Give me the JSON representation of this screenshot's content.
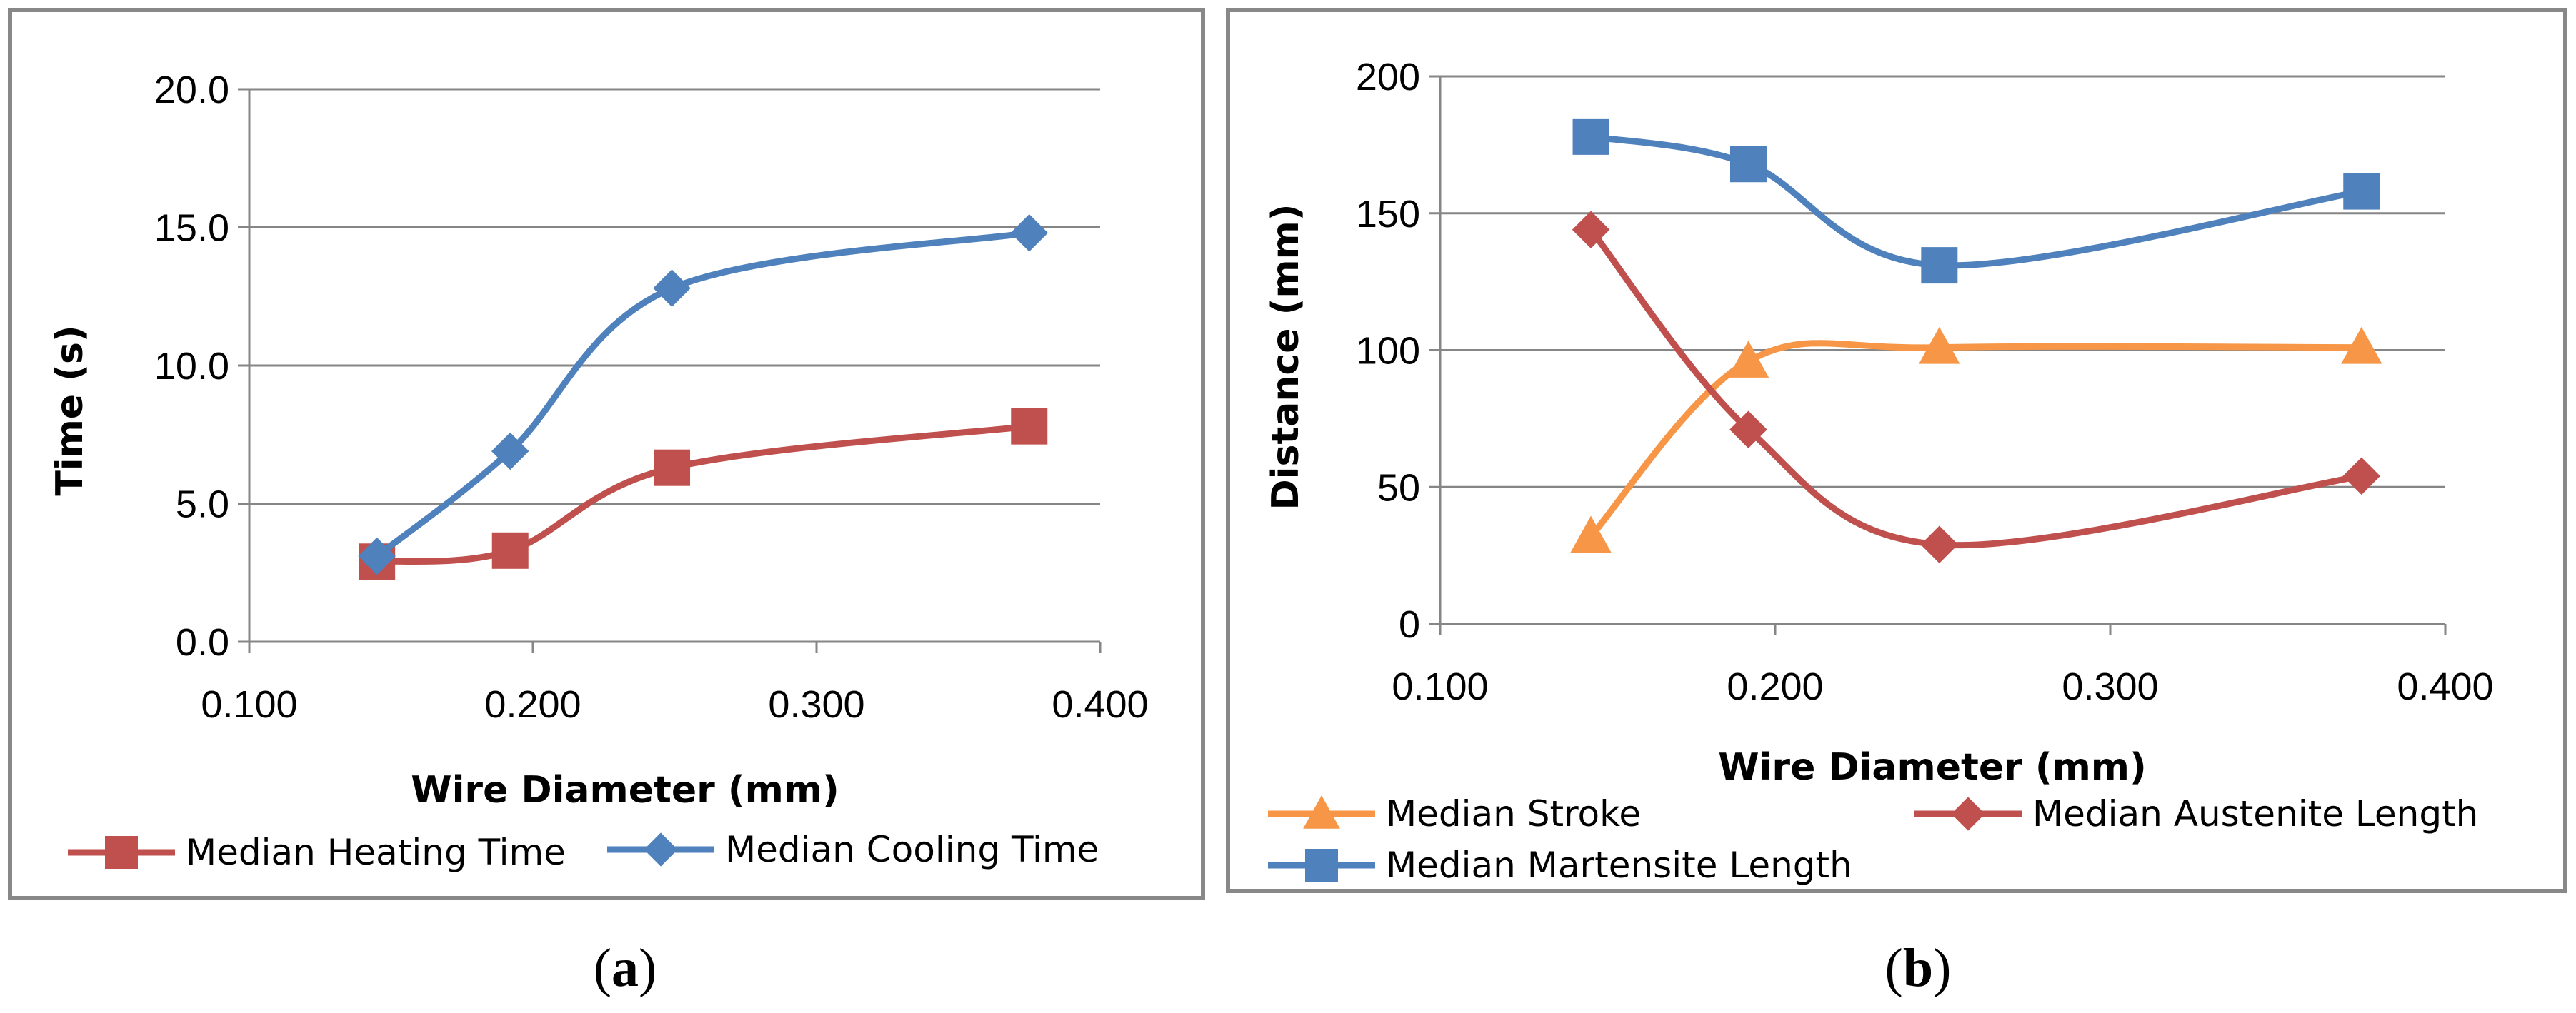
{
  "chart_data": [
    {
      "type": "line",
      "panel_label": "a",
      "xlabel": "Wire Diameter (mm)",
      "ylabel": "Time (s)",
      "xlim": [
        0.1,
        0.4
      ],
      "ylim": [
        0,
        20
      ],
      "x_ticks": [
        "0.100",
        "0.200",
        "0.300",
        "0.400"
      ],
      "y_ticks": [
        "0.0",
        "5.0",
        "10.0",
        "15.0",
        "20.0"
      ],
      "grid": "horizontal",
      "legend_position": "bottom",
      "series": [
        {
          "name": "Median Heating Time",
          "color": "#C0504D",
          "marker": "square",
          "x": [
            0.145,
            0.192,
            0.249,
            0.375
          ],
          "y": [
            2.9,
            3.3,
            6.3,
            7.8
          ]
        },
        {
          "name": "Median Cooling Time",
          "color": "#4F81BD",
          "marker": "diamond",
          "x": [
            0.145,
            0.192,
            0.249,
            0.375
          ],
          "y": [
            3.1,
            6.9,
            12.8,
            14.8
          ]
        }
      ]
    },
    {
      "type": "line",
      "panel_label": "b",
      "xlabel": "Wire Diameter (mm)",
      "ylabel": "Distance (mm)",
      "xlim": [
        0.1,
        0.4
      ],
      "ylim": [
        0,
        200
      ],
      "x_ticks": [
        "0.100",
        "0.200",
        "0.300",
        "0.400"
      ],
      "y_ticks": [
        "0",
        "50",
        "100",
        "150",
        "200"
      ],
      "grid": "horizontal",
      "legend_position": "bottom",
      "series": [
        {
          "name": "Median Stroke",
          "color": "#F79646",
          "marker": "triangle",
          "x": [
            0.145,
            0.192,
            0.249,
            0.375
          ],
          "y": [
            32,
            96,
            101,
            101
          ]
        },
        {
          "name": "Median Austenite Length",
          "color": "#C0504D",
          "marker": "diamond",
          "x": [
            0.145,
            0.192,
            0.249,
            0.375
          ],
          "y": [
            144,
            71,
            29,
            54
          ]
        },
        {
          "name": "Median Martensite Length",
          "color": "#4F81BD",
          "marker": "square",
          "x": [
            0.145,
            0.192,
            0.249,
            0.375
          ],
          "y": [
            178,
            168,
            131,
            158
          ]
        }
      ]
    }
  ]
}
